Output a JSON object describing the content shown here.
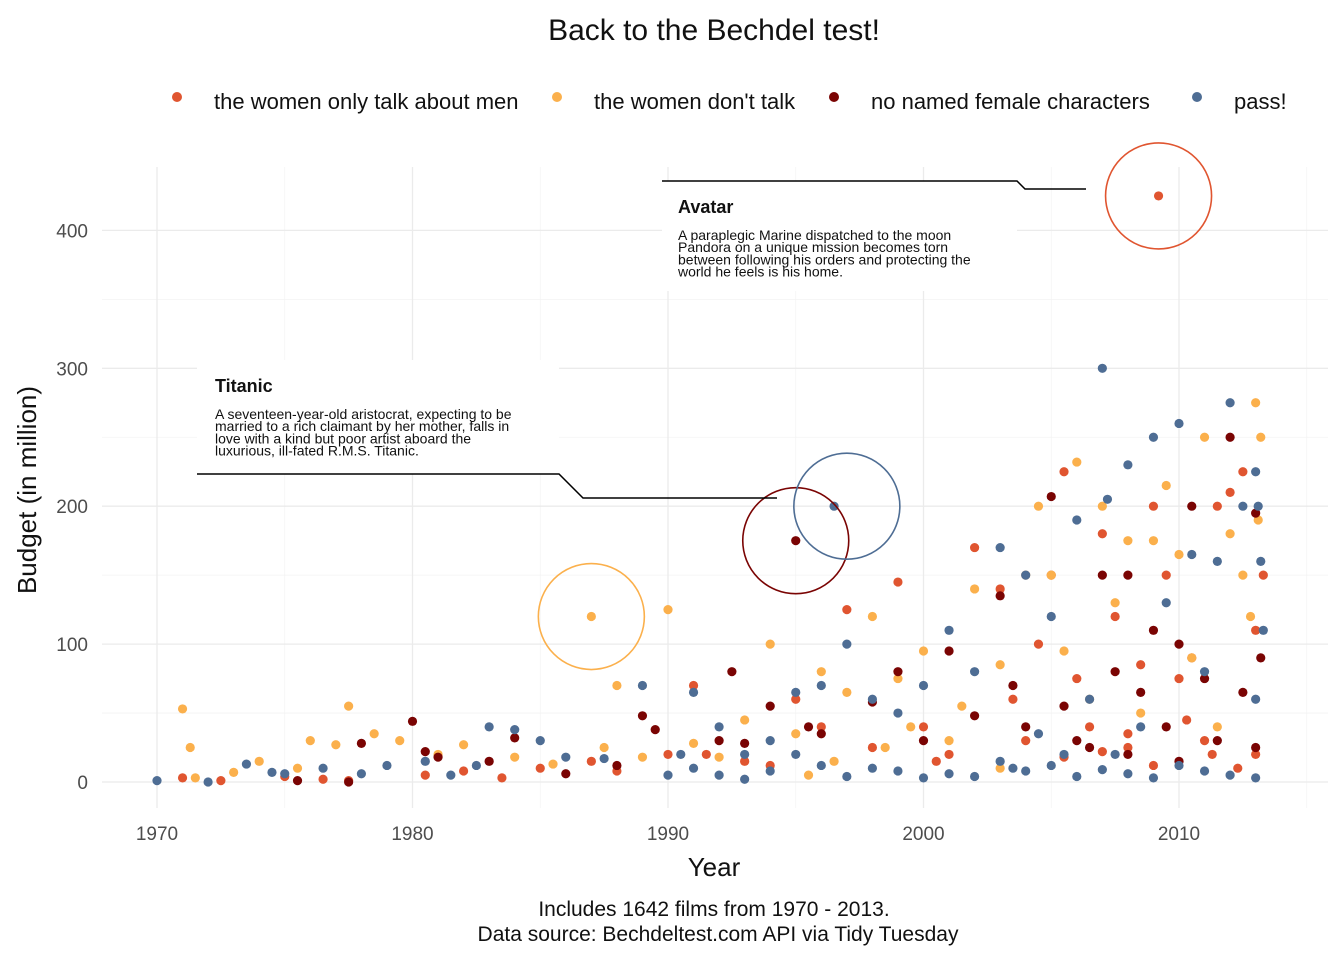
{
  "chart_data": {
    "type": "scatter",
    "title": "Back to the Bechdel test!",
    "xlabel": "Year",
    "ylabel": "Budget (in million)",
    "xlim": [
      1969.5,
      2013.5
    ],
    "ylim": [
      -15,
      445
    ],
    "x_ticks": [
      1970,
      1980,
      1990,
      2000,
      2010
    ],
    "y_ticks": [
      0,
      100,
      200,
      300,
      400
    ],
    "x_tick_labels": [
      "1970",
      "1980",
      "1990",
      "2000",
      "2010"
    ],
    "y_tick_labels": [
      "0",
      "100",
      "200",
      "300",
      "400"
    ],
    "grid": true,
    "legend_position": "top",
    "caption_lines": [
      "Includes 1642 films from 1970 - 2013.",
      "Data source: Bechdeltest.com API via Tidy Tuesday"
    ],
    "series": [
      {
        "name": "the women only talk about men",
        "color": "#e05530",
        "points": [
          [
            1971,
            3
          ],
          [
            1972.5,
            1
          ],
          [
            1975,
            4
          ],
          [
            1976.5,
            2
          ],
          [
            1977.5,
            1
          ],
          [
            1980.5,
            5
          ],
          [
            1982,
            8
          ],
          [
            1983.5,
            3
          ],
          [
            1985,
            10
          ],
          [
            1987,
            15
          ],
          [
            1988,
            8
          ],
          [
            1990,
            20
          ],
          [
            1991,
            70
          ],
          [
            1991.5,
            20
          ],
          [
            1993,
            15
          ],
          [
            1994,
            12
          ],
          [
            1995,
            60
          ],
          [
            1996,
            40
          ],
          [
            1997,
            125
          ],
          [
            1998,
            25
          ],
          [
            1999,
            145
          ],
          [
            2000,
            40
          ],
          [
            2000.5,
            15
          ],
          [
            2001,
            20
          ],
          [
            2002,
            170
          ],
          [
            2003,
            140
          ],
          [
            2003.5,
            60
          ],
          [
            2004,
            30
          ],
          [
            2004.5,
            100
          ],
          [
            2005,
            150
          ],
          [
            2005.5,
            225
          ],
          [
            2006,
            75
          ],
          [
            2006.5,
            40
          ],
          [
            2007,
            180
          ],
          [
            2007.5,
            120
          ],
          [
            2008,
            35
          ],
          [
            2008.5,
            85
          ],
          [
            2009,
            200
          ],
          [
            2009.5,
            150
          ],
          [
            2009.2,
            425
          ],
          [
            2010,
            75
          ],
          [
            2010.5,
            90
          ],
          [
            2011,
            30
          ],
          [
            2011.5,
            200
          ],
          [
            2012,
            210
          ],
          [
            2012.5,
            225
          ],
          [
            2013,
            20
          ],
          [
            2013.3,
            150
          ],
          [
            2013,
            110
          ],
          [
            2008,
            25
          ],
          [
            2009,
            12
          ],
          [
            2010.3,
            45
          ],
          [
            2011.3,
            20
          ],
          [
            2012.3,
            10
          ],
          [
            2007,
            22
          ],
          [
            2005.5,
            18
          ]
        ]
      },
      {
        "name": "the women don't talk",
        "color": "#fbb04c",
        "points": [
          [
            1971,
            53
          ],
          [
            1971.3,
            25
          ],
          [
            1971.5,
            3
          ],
          [
            1973,
            7
          ],
          [
            1974,
            15
          ],
          [
            1975.5,
            10
          ],
          [
            1976,
            30
          ],
          [
            1977,
            27
          ],
          [
            1977.5,
            55
          ],
          [
            1978.5,
            35
          ],
          [
            1979.5,
            30
          ],
          [
            1981,
            20
          ],
          [
            1982,
            27
          ],
          [
            1984,
            18
          ],
          [
            1985.5,
            13
          ],
          [
            1987,
            120
          ],
          [
            1987.5,
            25
          ],
          [
            1988,
            70
          ],
          [
            1989,
            18
          ],
          [
            1990,
            125
          ],
          [
            1991,
            28
          ],
          [
            1992,
            18
          ],
          [
            1993,
            45
          ],
          [
            1994,
            100
          ],
          [
            1995,
            35
          ],
          [
            1996,
            80
          ],
          [
            1997,
            65
          ],
          [
            1998,
            120
          ],
          [
            1999,
            75
          ],
          [
            2000,
            95
          ],
          [
            2001,
            30
          ],
          [
            2002,
            140
          ],
          [
            2003,
            85
          ],
          [
            2004,
            150
          ],
          [
            2004.5,
            200
          ],
          [
            2005,
            150
          ],
          [
            2005.5,
            95
          ],
          [
            2006,
            232
          ],
          [
            2006.5,
            60
          ],
          [
            2007,
            200
          ],
          [
            2007.5,
            130
          ],
          [
            2008,
            175
          ],
          [
            2008.5,
            50
          ],
          [
            2009,
            175
          ],
          [
            2009.5,
            215
          ],
          [
            2010,
            165
          ],
          [
            2010.5,
            90
          ],
          [
            2011,
            250
          ],
          [
            2011.5,
            40
          ],
          [
            2012,
            180
          ],
          [
            2012.5,
            150
          ],
          [
            2013,
            275
          ],
          [
            2013.2,
            250
          ],
          [
            2013.1,
            190
          ],
          [
            2012.8,
            120
          ],
          [
            2003,
            10
          ],
          [
            2001.5,
            55
          ],
          [
            1999.5,
            40
          ],
          [
            1998.5,
            25
          ],
          [
            1996.5,
            15
          ],
          [
            1995.5,
            5
          ]
        ]
      },
      {
        "name": "no named female characters",
        "color": "#7a0403",
        "points": [
          [
            1975.5,
            1
          ],
          [
            1977.5,
            0
          ],
          [
            1978,
            28
          ],
          [
            1980,
            44
          ],
          [
            1980.5,
            22
          ],
          [
            1981,
            18
          ],
          [
            1983,
            15
          ],
          [
            1984,
            32
          ],
          [
            1986,
            6
          ],
          [
            1988,
            12
          ],
          [
            1989,
            48
          ],
          [
            1989.5,
            38
          ],
          [
            1992,
            30
          ],
          [
            1992.5,
            80
          ],
          [
            1993,
            28
          ],
          [
            1994,
            55
          ],
          [
            1995,
            175
          ],
          [
            1995.5,
            40
          ],
          [
            1996,
            35
          ],
          [
            1998,
            58
          ],
          [
            1999,
            80
          ],
          [
            2000,
            30
          ],
          [
            2001,
            95
          ],
          [
            2002,
            48
          ],
          [
            2003,
            135
          ],
          [
            2003.5,
            70
          ],
          [
            2004,
            40
          ],
          [
            2005,
            207
          ],
          [
            2005.5,
            55
          ],
          [
            2006,
            30
          ],
          [
            2006.5,
            25
          ],
          [
            2007,
            150
          ],
          [
            2007.5,
            80
          ],
          [
            2008,
            150
          ],
          [
            2008.5,
            65
          ],
          [
            2009,
            110
          ],
          [
            2009.5,
            40
          ],
          [
            2010,
            100
          ],
          [
            2010.5,
            200
          ],
          [
            2011,
            75
          ],
          [
            2011.5,
            30
          ],
          [
            2012,
            250
          ],
          [
            2012.5,
            65
          ],
          [
            2013,
            195
          ],
          [
            2013.2,
            90
          ],
          [
            2013,
            25
          ],
          [
            2010,
            15
          ],
          [
            2008,
            20
          ]
        ]
      },
      {
        "name": "pass!",
        "color": "#4e6d94",
        "points": [
          [
            1970,
            1
          ],
          [
            1972,
            0
          ],
          [
            1973.5,
            13
          ],
          [
            1974.5,
            7
          ],
          [
            1975,
            6
          ],
          [
            1976.5,
            10
          ],
          [
            1978,
            6
          ],
          [
            1979,
            12
          ],
          [
            1980.5,
            15
          ],
          [
            1981.5,
            5
          ],
          [
            1982.5,
            12
          ],
          [
            1983,
            40
          ],
          [
            1984,
            38
          ],
          [
            1985,
            30
          ],
          [
            1986,
            18
          ],
          [
            1987.5,
            17
          ],
          [
            1989,
            70
          ],
          [
            1990,
            5
          ],
          [
            1990.5,
            20
          ],
          [
            1991,
            65
          ],
          [
            1992,
            40
          ],
          [
            1993,
            20
          ],
          [
            1994,
            30
          ],
          [
            1995,
            65
          ],
          [
            1996,
            70
          ],
          [
            1996.5,
            200
          ],
          [
            1997,
            100
          ],
          [
            1998,
            60
          ],
          [
            1999,
            50
          ],
          [
            2000,
            70
          ],
          [
            2001,
            110
          ],
          [
            2002,
            80
          ],
          [
            2003,
            170
          ],
          [
            2003.5,
            10
          ],
          [
            2004,
            150
          ],
          [
            2004.5,
            35
          ],
          [
            2005,
            120
          ],
          [
            2005.5,
            20
          ],
          [
            2006,
            190
          ],
          [
            2006.5,
            60
          ],
          [
            2007,
            300
          ],
          [
            2007.2,
            205
          ],
          [
            2007.5,
            20
          ],
          [
            2008,
            230
          ],
          [
            2008.5,
            40
          ],
          [
            2009,
            250
          ],
          [
            2009.5,
            130
          ],
          [
            2010,
            260
          ],
          [
            2010.5,
            165
          ],
          [
            2011,
            80
          ],
          [
            2011.5,
            160
          ],
          [
            2012,
            275
          ],
          [
            2012.5,
            200
          ],
          [
            2013,
            225
          ],
          [
            2013.1,
            200
          ],
          [
            2013.2,
            160
          ],
          [
            2013.3,
            110
          ],
          [
            2013,
            60
          ],
          [
            2013,
            3
          ],
          [
            2012,
            5
          ],
          [
            2011,
            8
          ],
          [
            2010,
            12
          ],
          [
            2009,
            3
          ],
          [
            2008,
            6
          ],
          [
            2007,
            9
          ],
          [
            2006,
            4
          ],
          [
            2005,
            12
          ],
          [
            2004,
            8
          ],
          [
            2003,
            15
          ],
          [
            2002,
            4
          ],
          [
            2001,
            6
          ],
          [
            2000,
            3
          ],
          [
            1999,
            8
          ],
          [
            1998,
            10
          ],
          [
            1997,
            4
          ],
          [
            1996,
            12
          ],
          [
            1995,
            20
          ],
          [
            1994,
            8
          ],
          [
            1993,
            2
          ],
          [
            1992,
            5
          ],
          [
            1991,
            10
          ]
        ]
      }
    ],
    "annotations": [
      {
        "title": "Titanic",
        "text_lines": [
          "A seventeen-year-old aristocrat, expecting to be",
          "married to a rich claimant by her mother, falls in",
          "love with a kind but poor artist aboard the",
          "luxurious, ill-fated R.M.S. Titanic."
        ],
        "highlight": {
          "x": 1997,
          "y": 200,
          "color": "#4e6d94"
        }
      },
      {
        "title": "Avatar",
        "text_lines": [
          "A paraplegic Marine dispatched to the moon",
          "Pandora on a unique mission becomes torn",
          "between following his orders and protecting the",
          "world he feels is his home."
        ],
        "highlight": {
          "x": 2009.2,
          "y": 425,
          "color": "#e05530"
        }
      }
    ],
    "highlight_circles": [
      {
        "x": 1987,
        "y": 120,
        "color": "#fbb04c"
      },
      {
        "x": 1995,
        "y": 175,
        "color": "#7a0403"
      }
    ]
  }
}
